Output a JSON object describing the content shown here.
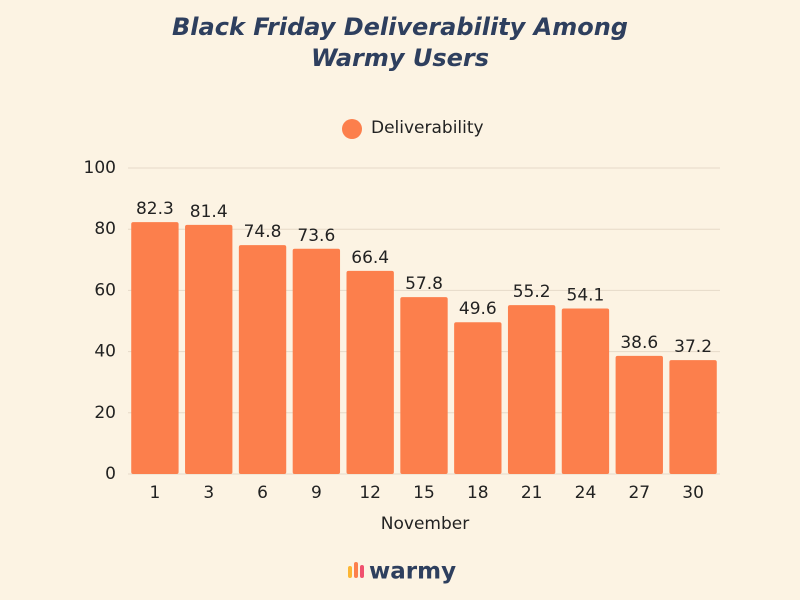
{
  "chart_data": {
    "type": "bar",
    "title": "Black Friday Deliverability Among Warmy Users",
    "x_label": "November",
    "categories": [
      "1",
      "3",
      "6",
      "9",
      "12",
      "15",
      "18",
      "21",
      "24",
      "27",
      "30"
    ],
    "series": [
      {
        "name": "Deliverability",
        "color": "#fc7f4c",
        "values": [
          82.3,
          81.4,
          74.8,
          73.6,
          66.4,
          57.8,
          49.6,
          55.2,
          54.1,
          38.6,
          37.2
        ]
      }
    ],
    "ylim": [
      0,
      100
    ],
    "yticks": [
      0,
      20,
      40,
      60,
      80,
      100
    ],
    "grid": true,
    "legend": "top"
  },
  "branding": {
    "logo": "warmy"
  }
}
